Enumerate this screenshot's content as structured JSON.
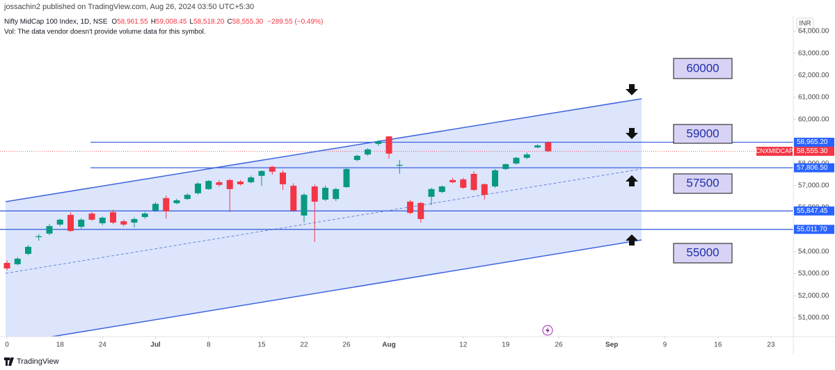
{
  "header": {
    "publisher": "jossachin2 published on TradingView.com, Aug 26, 2024 03:50 UTC+5:30",
    "legend": [
      {
        "key": "O",
        "value": "58,961.55"
      },
      {
        "key": "H",
        "value": "59,008.45"
      },
      {
        "key": "L",
        "value": "58,518.20"
      },
      {
        "key": "C",
        "value": "58,555.30"
      }
    ],
    "change": "−289.55 (−0.49%)",
    "volume_note": "Vol: The data vendor doesn't provide volume data for this symbol.",
    "currency": "INR",
    "brand": "TradingView"
  },
  "annotations": [
    "60000",
    "59000",
    "57500",
    "55000"
  ],
  "chart_data": {
    "type": "candlestick",
    "title": "Nifty MidCap 100 Index, 1D, NSE",
    "up_color": "#089981",
    "down_color": "#f23645",
    "x": [
      0,
      1,
      2,
      3,
      4,
      5,
      6,
      7,
      8,
      9,
      10,
      11,
      12,
      13,
      14,
      15,
      16,
      17,
      18,
      19,
      20,
      21,
      22,
      23,
      24,
      25,
      26,
      27,
      28,
      29,
      30,
      31,
      32,
      33,
      34,
      35,
      36,
      37,
      38,
      39,
      40,
      41,
      42,
      43,
      44,
      45,
      46,
      47,
      48,
      49,
      50,
      51
    ],
    "open": [
      53490,
      53430,
      53900,
      54660,
      54820,
      55230,
      55670,
      55130,
      55730,
      55290,
      55790,
      55380,
      55320,
      55570,
      55860,
      56430,
      56200,
      56390,
      56650,
      56840,
      57150,
      57250,
      57180,
      57150,
      57440,
      57850,
      57590,
      56990,
      55640,
      56960,
      56360,
      56390,
      56930,
      58160,
      58410,
      58890,
      59230,
      57900,
      56270,
      56210,
      56490,
      56710,
      57250,
      57280,
      57530,
      57060,
      56960,
      57750,
      58000,
      58260,
      58730,
      58961.55
    ],
    "high": [
      53600,
      53750,
      54300,
      54800,
      55250,
      55500,
      55780,
      55520,
      55800,
      55600,
      55900,
      55450,
      55560,
      55800,
      56250,
      56550,
      56400,
      56650,
      57150,
      57250,
      57250,
      57300,
      57250,
      57450,
      57700,
      57900,
      57700,
      57100,
      56650,
      57050,
      57000,
      56900,
      57800,
      58400,
      58700,
      59050,
      59250,
      58160,
      56350,
      56250,
      56900,
      57000,
      57350,
      57350,
      57650,
      57100,
      57750,
      58000,
      58300,
      58500,
      58870,
      59008.45
    ],
    "low": [
      53150,
      53380,
      53840,
      54500,
      54750,
      55150,
      54900,
      55050,
      55400,
      55200,
      55250,
      55150,
      55100,
      55500,
      55800,
      55500,
      56150,
      56350,
      56600,
      56800,
      56950,
      55800,
      57000,
      57100,
      56980,
      57500,
      56800,
      55800,
      55320,
      54440,
      56300,
      56300,
      56900,
      58100,
      58350,
      58800,
      58220,
      57530,
      55700,
      55320,
      56110,
      56650,
      57100,
      56850,
      56750,
      56360,
      56900,
      57700,
      57950,
      58200,
      58700,
      58518.2
    ],
    "close": [
      53240,
      53680,
      54220,
      54700,
      55160,
      55450,
      54940,
      55450,
      55450,
      55540,
      55320,
      55230,
      55480,
      55730,
      56170,
      55830,
      56330,
      56580,
      57090,
      57210,
      57030,
      56840,
      57060,
      57370,
      57660,
      57630,
      57060,
      55860,
      56580,
      56270,
      56900,
      56840,
      57750,
      58350,
      58640,
      59010,
      58450,
      57940,
      55760,
      55480,
      56840,
      56960,
      57150,
      56900,
      56800,
      56580,
      57690,
      57970,
      58260,
      58410,
      58820,
      58555.3
    ],
    "xlim": [
      -0.656,
      74.1
    ],
    "xticks": [
      0,
      {
        "value": 5,
        "label": "18"
      },
      {
        "value": 9,
        "label": "24"
      },
      {
        "value": 14,
        "label": "Jul"
      },
      {
        "value": 19,
        "label": "8"
      },
      {
        "value": 24,
        "label": "15"
      },
      {
        "value": 28,
        "label": "22"
      },
      {
        "value": 32,
        "label": "26"
      },
      {
        "value": 36,
        "label": "Aug"
      },
      {
        "value": 43,
        "label": "12"
      },
      {
        "value": 47,
        "label": "19"
      },
      {
        "value": 52,
        "label": "26"
      },
      {
        "value": 57,
        "label": "Sep"
      },
      {
        "value": 62,
        "label": "9"
      },
      {
        "value": 67,
        "label": "16"
      },
      {
        "value": 72,
        "label": "23"
      }
    ],
    "ylim": [
      50145,
      64726
    ],
    "yticks": [
      {
        "value": 64000,
        "label": "64,000.00"
      },
      {
        "value": 63000,
        "label": "63,000.00"
      },
      {
        "value": 62000,
        "label": "62,000.00"
      },
      {
        "value": 61000,
        "label": "61,000.00"
      },
      {
        "value": 60000,
        "label": "60,000.00"
      },
      {
        "value": 59000,
        "label": "59,000.00"
      },
      {
        "value": 58000,
        "label": "58,000.00"
      },
      {
        "value": 57000,
        "label": "57,000.00"
      },
      {
        "value": 56000,
        "label": "56,000.00"
      },
      {
        "value": 55000,
        "label": "55,000.00"
      },
      {
        "value": 54000,
        "label": "54,000.00"
      },
      {
        "value": 53000,
        "label": "53,000.00"
      },
      {
        "value": 52000,
        "label": "52,000.00"
      },
      {
        "value": 51000,
        "label": "51,000.00"
      }
    ],
    "levels": [
      {
        "value": 58965.2,
        "label": "58,965.20"
      },
      {
        "value": 57806.5,
        "label": "57,806.50"
      },
      {
        "value": 55847.45,
        "label": "55,847.45"
      },
      {
        "value": 55011.7,
        "label": "55,011.70"
      }
    ],
    "last_price": {
      "value": 58555.3,
      "label": "58,555.30",
      "symbol": "CNXMIDCAP"
    }
  }
}
